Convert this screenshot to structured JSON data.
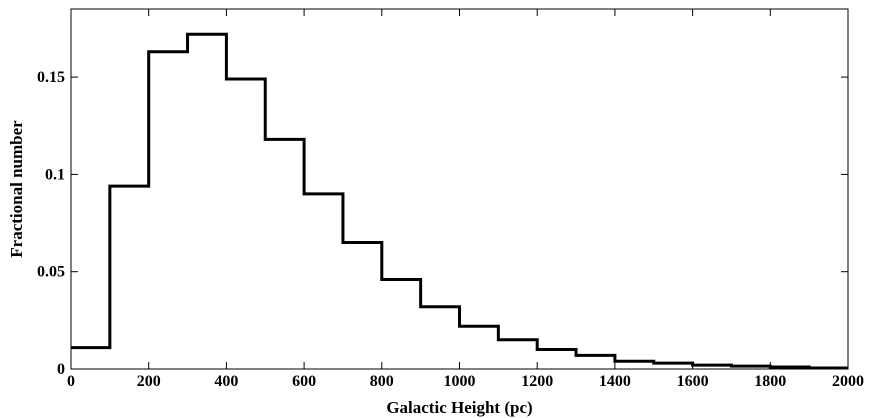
{
  "chart_data": {
    "type": "histogram",
    "title": "",
    "xlabel": "Galactic Height (pc)",
    "ylabel": "Fractional number",
    "xlim": [
      0,
      2000
    ],
    "ylim": [
      0,
      0.185
    ],
    "grid": false,
    "bin_edges": [
      0,
      100,
      200,
      300,
      400,
      500,
      600,
      700,
      800,
      900,
      1000,
      1100,
      1200,
      1300,
      1400,
      1500,
      1600,
      1700,
      1800,
      1900,
      2000
    ],
    "values": [
      0.011,
      0.094,
      0.163,
      0.172,
      0.149,
      0.118,
      0.09,
      0.065,
      0.046,
      0.032,
      0.022,
      0.015,
      0.01,
      0.007,
      0.004,
      0.003,
      0.002,
      0.0015,
      0.001,
      0.0005
    ],
    "x_ticks": [
      {
        "value": 0,
        "label": "0"
      },
      {
        "value": 200,
        "label": "200"
      },
      {
        "value": 400,
        "label": "400"
      },
      {
        "value": 600,
        "label": "600"
      },
      {
        "value": 800,
        "label": "800"
      },
      {
        "value": 1000,
        "label": "1000"
      },
      {
        "value": 1200,
        "label": "1200"
      },
      {
        "value": 1400,
        "label": "1400"
      },
      {
        "value": 1600,
        "label": "1600"
      },
      {
        "value": 1800,
        "label": "1800"
      },
      {
        "value": 2000,
        "label": "2000"
      }
    ],
    "y_ticks": [
      {
        "value": 0,
        "label": "0"
      },
      {
        "value": 0.05,
        "label": "0.05"
      },
      {
        "value": 0.1,
        "label": "0.1"
      },
      {
        "value": 0.15,
        "label": "0.15"
      }
    ],
    "line_color": "#000000"
  }
}
